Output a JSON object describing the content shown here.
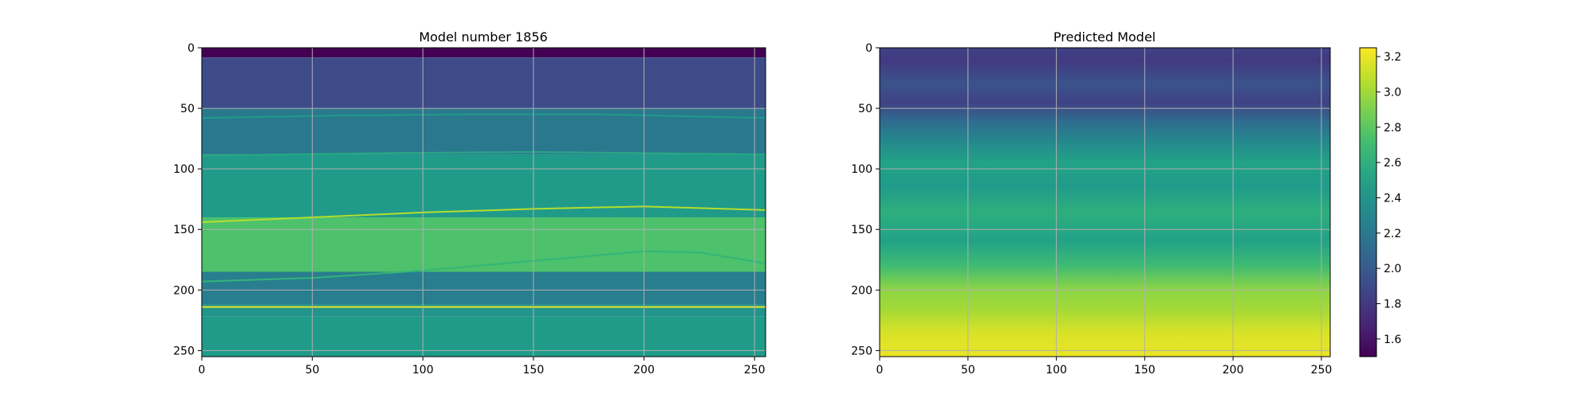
{
  "chart_data": [
    {
      "type": "heatmap",
      "title": "Model number 1856",
      "xlim": [
        0,
        255
      ],
      "ylim": [
        255,
        0
      ],
      "xticks": [
        0,
        50,
        100,
        150,
        200,
        250
      ],
      "yticks": [
        0,
        50,
        100,
        150,
        200,
        250
      ],
      "grid": true,
      "colormap": "viridis",
      "layers": [
        {
          "depth_top": 0,
          "depth_bottom": 8,
          "value": 1.5
        },
        {
          "depth_top": 8,
          "depth_bottom": 50,
          "value": 1.9
        },
        {
          "depth_top": 50,
          "depth_bottom": 88,
          "value": 2.2
        },
        {
          "depth_top": 88,
          "depth_bottom": 140,
          "value": 2.45
        },
        {
          "depth_top": 140,
          "depth_bottom": 185,
          "value": 2.75
        },
        {
          "depth_top": 185,
          "depth_bottom": 212,
          "value": 2.25
        },
        {
          "depth_top": 212,
          "depth_bottom": 222,
          "value": 2.4
        },
        {
          "depth_top": 222,
          "depth_bottom": 255,
          "value": 2.45
        }
      ],
      "interfaces": [
        {
          "name": "i1",
          "value": 2.45,
          "points": [
            [
              0,
              58
            ],
            [
              60,
              56
            ],
            [
              120,
              55
            ],
            [
              180,
              55
            ],
            [
              255,
              58
            ]
          ]
        },
        {
          "name": "i2",
          "value": 2.55,
          "points": [
            [
              0,
              89
            ],
            [
              80,
              87
            ],
            [
              150,
              86
            ],
            [
              255,
              88
            ]
          ]
        },
        {
          "name": "i3",
          "value": 3.05,
          "points": [
            [
              0,
              144
            ],
            [
              50,
              140
            ],
            [
              100,
              136
            ],
            [
              150,
              133
            ],
            [
              200,
              131
            ],
            [
              255,
              134
            ]
          ]
        },
        {
          "name": "i4",
          "value": 2.65,
          "points": [
            [
              0,
              193
            ],
            [
              50,
              190
            ],
            [
              100,
              184
            ],
            [
              150,
              176
            ],
            [
              200,
              168
            ],
            [
              225,
              169
            ],
            [
              255,
              178
            ]
          ]
        },
        {
          "name": "i5",
          "value": 3.2,
          "points": [
            [
              0,
              214
            ],
            [
              255,
              214
            ]
          ]
        }
      ]
    },
    {
      "type": "heatmap",
      "title": "Predicted Model",
      "xlim": [
        0,
        255
      ],
      "ylim": [
        255,
        0
      ],
      "xticks": [
        0,
        50,
        100,
        150,
        200,
        250
      ],
      "yticks": [
        0,
        50,
        100,
        150,
        200,
        250
      ],
      "grid": true,
      "colormap": "viridis",
      "bands": [
        {
          "depth": 0,
          "value": 1.85
        },
        {
          "depth": 10,
          "value": 1.8
        },
        {
          "depth": 30,
          "value": 1.95
        },
        {
          "depth": 45,
          "value": 1.85
        },
        {
          "depth": 60,
          "value": 2.1
        },
        {
          "depth": 75,
          "value": 2.3
        },
        {
          "depth": 95,
          "value": 2.5
        },
        {
          "depth": 115,
          "value": 2.45
        },
        {
          "depth": 135,
          "value": 2.6
        },
        {
          "depth": 160,
          "value": 2.5
        },
        {
          "depth": 180,
          "value": 2.7
        },
        {
          "depth": 200,
          "value": 2.95
        },
        {
          "depth": 215,
          "value": 3.0
        },
        {
          "depth": 235,
          "value": 3.15
        },
        {
          "depth": 255,
          "value": 3.2
        }
      ]
    }
  ],
  "colorbar": {
    "min": 1.5,
    "max": 3.25,
    "ticks": [
      1.6,
      1.8,
      2.0,
      2.2,
      2.4,
      2.6,
      2.8,
      3.0,
      3.2
    ],
    "tick_labels": [
      "1.6",
      "1.8",
      "2.0",
      "2.2",
      "2.4",
      "2.6",
      "2.8",
      "3.0",
      "3.2"
    ]
  },
  "colors": {
    "grid": "#b0b0b0",
    "axis": "#000000"
  }
}
